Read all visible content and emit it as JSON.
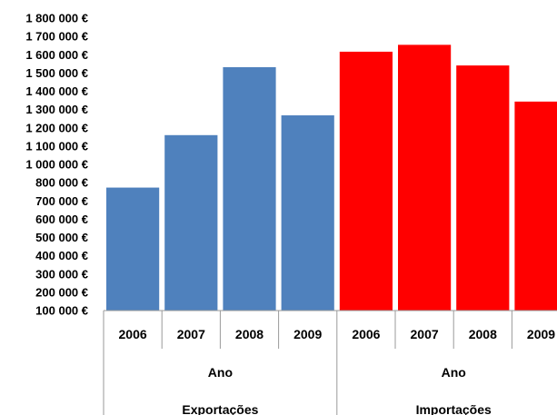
{
  "chart_data": {
    "type": "bar",
    "title": "",
    "xlabel": "",
    "ylabel": "",
    "ylim": [
      100000,
      1800000
    ],
    "yticks": [
      "1 800 000 €",
      "1 700 000 €",
      "1 600 000 €",
      "1 500 000 €",
      "1 400 000 €",
      "1 300 000 €",
      "1 200 000 €",
      "1 100 000 €",
      "1 000 000 €",
      "800 000 €",
      "700 000 €",
      "600 000 €",
      "500 000 €",
      "400 000 €",
      "300 000 €",
      "200 000 €",
      "100 000 €"
    ],
    "categories": [
      "2006",
      "2007",
      "2008",
      "2009",
      "2006",
      "2007",
      "2008",
      "2009"
    ],
    "values": [
      815000,
      1120000,
      1515000,
      1235000,
      1605000,
      1645000,
      1525000,
      1315000
    ],
    "colors": [
      "#4f81bd",
      "#4f81bd",
      "#4f81bd",
      "#4f81bd",
      "#ff0000",
      "#ff0000",
      "#ff0000",
      "#ff0000"
    ],
    "groups": [
      {
        "sublabel": "Ano",
        "label": "Exportações"
      },
      {
        "sublabel": "Ano",
        "label": "Importações"
      }
    ]
  }
}
